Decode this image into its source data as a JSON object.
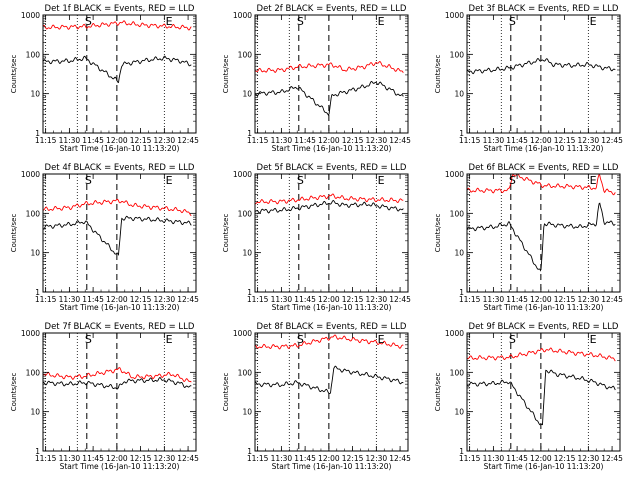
{
  "figure": {
    "x_tick_labels": [
      "11:15",
      "11:30",
      "11:45",
      "12:00",
      "12:15",
      "12:30",
      "12:45"
    ],
    "x_label": "Start Time (16-Jan-10 11:13:20)",
    "y_label": "Counts/sec",
    "y_tick_labels": [
      "1",
      "10",
      "100",
      "1000"
    ],
    "marker_labels": {
      "start": "S",
      "end": "E"
    },
    "colors": {
      "events": "#000000",
      "lld": "#ff0000",
      "axes": "#000000"
    }
  },
  "chart_data": [
    {
      "type": "line",
      "title": "Det 1f BLACK = Events, RED = LLD",
      "x_range": [
        "11:13:20",
        "12:50:00"
      ],
      "y_scale": "log",
      "ylim": [
        1,
        1000
      ],
      "dotted_lines": [
        "11:15",
        "11:35",
        "12:30"
      ],
      "dashed_lines": [
        "11:41",
        "12:00"
      ],
      "markers": [
        {
          "label": "S",
          "time": "11:42"
        },
        {
          "label": "E",
          "time": "12:33"
        }
      ],
      "series": [
        {
          "name": "BLACK = Events",
          "color": "#000000",
          "anchors": [
            [
              "11:13:20",
              65
            ],
            [
              "11:30",
              68
            ],
            [
              "11:40",
              80
            ],
            [
              "12:01",
              20
            ],
            [
              "12:03",
              55
            ],
            [
              "12:10",
              62
            ],
            [
              "12:20",
              72
            ],
            [
              "12:30",
              80
            ],
            [
              "12:40",
              68
            ],
            [
              "12:47",
              55
            ]
          ]
        },
        {
          "name": "RED = LLD",
          "color": "#ff0000",
          "anchors": [
            [
              "11:13:20",
              480
            ],
            [
              "11:41",
              510
            ],
            [
              "12:03",
              640
            ],
            [
              "12:15",
              560
            ],
            [
              "12:30",
              520
            ],
            [
              "12:47",
              470
            ]
          ]
        }
      ]
    },
    {
      "type": "line",
      "title": "Det 2f BLACK = Events, RED = LLD",
      "x_range": [
        "11:13:20",
        "12:50:00"
      ],
      "y_scale": "log",
      "ylim": [
        1,
        1000
      ],
      "dotted_lines": [
        "11:15",
        "11:35",
        "12:30"
      ],
      "dashed_lines": [
        "11:41",
        "12:00"
      ],
      "markers": [
        {
          "label": "S",
          "time": "11:42"
        },
        {
          "label": "E",
          "time": "12:33"
        }
      ],
      "series": [
        {
          "name": "BLACK = Events",
          "color": "#000000",
          "anchors": [
            [
              "11:13:20",
              10
            ],
            [
              "11:30",
              11
            ],
            [
              "11:40",
              15
            ],
            [
              "12:00",
              3
            ],
            [
              "12:02",
              9
            ],
            [
              "12:10",
              11
            ],
            [
              "12:22",
              15
            ],
            [
              "12:30",
              20
            ],
            [
              "12:40",
              12
            ],
            [
              "12:47",
              8
            ]
          ]
        },
        {
          "name": "RED = LLD",
          "color": "#ff0000",
          "anchors": [
            [
              "11:13:20",
              38
            ],
            [
              "11:30",
              40
            ],
            [
              "11:40",
              48
            ],
            [
              "12:02",
              55
            ],
            [
              "12:10",
              40
            ],
            [
              "12:22",
              48
            ],
            [
              "12:30",
              62
            ],
            [
              "12:40",
              45
            ],
            [
              "12:47",
              35
            ]
          ]
        }
      ]
    },
    {
      "type": "line",
      "title": "Det 3f BLACK = Events, RED = LLD",
      "x_range": [
        "11:13:20",
        "12:50:00"
      ],
      "y_scale": "log",
      "ylim": [
        1,
        1000
      ],
      "dotted_lines": [
        "11:15",
        "11:35",
        "12:30"
      ],
      "dashed_lines": [
        "11:41",
        "12:00"
      ],
      "markers": [
        {
          "label": "S",
          "time": "11:42"
        },
        {
          "label": "E",
          "time": "12:33"
        }
      ],
      "series": [
        {
          "name": "BLACK = Events",
          "color": "#000000",
          "anchors": [
            [
              "11:13:20",
              36
            ],
            [
              "11:30",
              40
            ],
            [
              "11:40",
              45
            ],
            [
              "12:02",
              75
            ],
            [
              "12:08",
              55
            ],
            [
              "12:20",
              52
            ],
            [
              "12:30",
              55
            ],
            [
              "12:40",
              45
            ],
            [
              "12:47",
              42
            ]
          ]
        }
      ]
    },
    {
      "type": "line",
      "title": "Det 4f BLACK = Events, RED = LLD",
      "x_range": [
        "11:13:20",
        "12:50:00"
      ],
      "y_scale": "log",
      "ylim": [
        1,
        1000
      ],
      "dotted_lines": [
        "11:15",
        "11:35",
        "12:30"
      ],
      "dashed_lines": [
        "11:41",
        "12:00"
      ],
      "markers": [
        {
          "label": "S",
          "time": "11:42"
        },
        {
          "label": "E",
          "time": "12:33"
        }
      ],
      "series": [
        {
          "name": "BLACK = Events",
          "color": "#000000",
          "anchors": [
            [
              "11:13:20",
              45
            ],
            [
              "11:30",
              52
            ],
            [
              "11:40",
              62
            ],
            [
              "12:01",
              8
            ],
            [
              "12:03",
              75
            ],
            [
              "12:10",
              75
            ],
            [
              "12:25",
              68
            ],
            [
              "12:40",
              60
            ],
            [
              "12:47",
              55
            ]
          ]
        },
        {
          "name": "RED = LLD",
          "color": "#ff0000",
          "anchors": [
            [
              "11:13:20",
              125
            ],
            [
              "11:30",
              140
            ],
            [
              "11:40",
              175
            ],
            [
              "12:02",
              210
            ],
            [
              "12:10",
              160
            ],
            [
              "12:25",
              140
            ],
            [
              "12:40",
              120
            ],
            [
              "12:47",
              100
            ]
          ]
        }
      ]
    },
    {
      "type": "line",
      "title": "Det 5f BLACK = Events, RED = LLD",
      "x_range": [
        "11:13:20",
        "12:50:00"
      ],
      "y_scale": "log",
      "ylim": [
        1,
        1000
      ],
      "dotted_lines": [
        "11:15",
        "11:35",
        "12:30"
      ],
      "dashed_lines": [
        "11:41",
        "12:00"
      ],
      "markers": [
        {
          "label": "S",
          "time": "11:42"
        },
        {
          "label": "E",
          "time": "12:33"
        }
      ],
      "series": [
        {
          "name": "BLACK = Events",
          "color": "#000000",
          "anchors": [
            [
              "11:13:20",
              115
            ],
            [
              "11:30",
              120
            ],
            [
              "11:40",
              135
            ],
            [
              "12:02",
              190
            ],
            [
              "12:10",
              160
            ],
            [
              "12:25",
              170
            ],
            [
              "12:40",
              135
            ],
            [
              "12:47",
              125
            ]
          ]
        },
        {
          "name": "RED = LLD",
          "color": "#ff0000",
          "anchors": [
            [
              "11:13:20",
              195
            ],
            [
              "11:30",
              200
            ],
            [
              "11:40",
              220
            ],
            [
              "12:02",
              280
            ],
            [
              "12:10",
              240
            ],
            [
              "12:25",
              225
            ],
            [
              "12:40",
              215
            ],
            [
              "12:47",
              210
            ]
          ]
        }
      ]
    },
    {
      "type": "line",
      "title": "Det 6f BLACK = Events, RED = LLD",
      "x_range": [
        "11:13:20",
        "12:50:00"
      ],
      "y_scale": "log",
      "ylim": [
        1,
        1000
      ],
      "dotted_lines": [
        "11:15",
        "11:35",
        "12:30"
      ],
      "dashed_lines": [
        "11:41",
        "12:00"
      ],
      "markers": [
        {
          "label": "S",
          "time": "11:42"
        },
        {
          "label": "E",
          "time": "12:33"
        }
      ],
      "series": [
        {
          "name": "BLACK = Events",
          "color": "#000000",
          "anchors": [
            [
              "11:13:20",
              40
            ],
            [
              "11:30",
              45
            ],
            [
              "11:40",
              55
            ],
            [
              "12:00",
              3
            ],
            [
              "12:02",
              55
            ],
            [
              "12:10",
              50
            ],
            [
              "12:25",
              45
            ],
            [
              "12:35",
              55
            ],
            [
              "12:37",
              190
            ],
            [
              "12:40",
              60
            ],
            [
              "12:47",
              55
            ]
          ]
        },
        {
          "name": "RED = LLD",
          "color": "#ff0000",
          "anchors": [
            [
              "11:13:20",
              380
            ],
            [
              "11:40",
              380
            ],
            [
              "11:42",
              1000
            ],
            [
              "12:02",
              500
            ],
            [
              "12:20",
              480
            ],
            [
              "12:35",
              440
            ],
            [
              "12:37",
              1000
            ],
            [
              "12:40",
              380
            ],
            [
              "12:47",
              330
            ]
          ]
        }
      ]
    },
    {
      "type": "line",
      "title": "Det 7f BLACK = Events, RED = LLD",
      "x_range": [
        "11:13:20",
        "12:50:00"
      ],
      "y_scale": "log",
      "ylim": [
        1,
        1000
      ],
      "dotted_lines": [
        "11:15",
        "11:35",
        "12:30"
      ],
      "dashed_lines": [
        "11:41",
        "12:00"
      ],
      "markers": [
        {
          "label": "S",
          "time": "11:42"
        },
        {
          "label": "E",
          "time": "12:33"
        }
      ],
      "series": [
        {
          "name": "BLACK = Events",
          "color": "#000000",
          "anchors": [
            [
              "11:13:20",
              55
            ],
            [
              "11:30",
              50
            ],
            [
              "11:40",
              55
            ],
            [
              "12:01",
              40
            ],
            [
              "12:05",
              60
            ],
            [
              "12:15",
              62
            ],
            [
              "12:30",
              65
            ],
            [
              "12:40",
              52
            ],
            [
              "12:47",
              40
            ]
          ]
        },
        {
          "name": "RED = LLD",
          "color": "#ff0000",
          "anchors": [
            [
              "11:13:20",
              90
            ],
            [
              "11:30",
              75
            ],
            [
              "11:40",
              80
            ],
            [
              "12:02",
              120
            ],
            [
              "12:10",
              75
            ],
            [
              "12:25",
              80
            ],
            [
              "12:35",
              90
            ],
            [
              "12:47",
              55
            ]
          ]
        }
      ]
    },
    {
      "type": "line",
      "title": "Det 8f BLACK = Events, RED = LLD",
      "x_range": [
        "11:13:20",
        "12:50:00"
      ],
      "y_scale": "log",
      "ylim": [
        1,
        1000
      ],
      "dotted_lines": [
        "11:15",
        "11:35",
        "12:30"
      ],
      "dashed_lines": [
        "11:41",
        "12:00"
      ],
      "markers": [
        {
          "label": "S",
          "time": "11:42"
        },
        {
          "label": "E",
          "time": "12:33"
        }
      ],
      "series": [
        {
          "name": "BLACK = Events",
          "color": "#000000",
          "anchors": [
            [
              "11:13:20",
              50
            ],
            [
              "11:30",
              48
            ],
            [
              "11:40",
              55
            ],
            [
              "12:01",
              30
            ],
            [
              "12:03",
              130
            ],
            [
              "12:10",
              110
            ],
            [
              "12:25",
              85
            ],
            [
              "12:40",
              65
            ],
            [
              "12:47",
              55
            ]
          ]
        },
        {
          "name": "RED = LLD",
          "color": "#ff0000",
          "anchors": [
            [
              "11:13:20",
              450
            ],
            [
              "11:30",
              450
            ],
            [
              "11:40",
              480
            ],
            [
              "12:03",
              800
            ],
            [
              "12:15",
              680
            ],
            [
              "12:30",
              580
            ],
            [
              "12:47",
              450
            ]
          ]
        }
      ]
    },
    {
      "type": "line",
      "title": "Det 9f BLACK = Events, RED = LLD",
      "x_range": [
        "11:13:20",
        "12:50:00"
      ],
      "y_scale": "log",
      "ylim": [
        1,
        1000
      ],
      "dotted_lines": [
        "11:15",
        "11:35",
        "12:30"
      ],
      "dashed_lines": [
        "11:41",
        "12:00"
      ],
      "markers": [
        {
          "label": "S",
          "time": "11:42"
        },
        {
          "label": "E",
          "time": "12:33"
        }
      ],
      "series": [
        {
          "name": "BLACK = Events",
          "color": "#000000",
          "anchors": [
            [
              "11:13:20",
              50
            ],
            [
              "11:30",
              52
            ],
            [
              "11:40",
              58
            ],
            [
              "12:01",
              4
            ],
            [
              "12:03",
              115
            ],
            [
              "12:10",
              90
            ],
            [
              "12:25",
              70
            ],
            [
              "12:35",
              55
            ],
            [
              "12:40",
              45
            ],
            [
              "12:47",
              38
            ]
          ]
        },
        {
          "name": "RED = LLD",
          "color": "#ff0000",
          "anchors": [
            [
              "11:13:20",
              230
            ],
            [
              "11:40",
              240
            ],
            [
              "12:03",
              380
            ],
            [
              "12:10",
              350
            ],
            [
              "12:25",
              300
            ],
            [
              "12:35",
              270
            ],
            [
              "12:47",
              220
            ]
          ]
        }
      ]
    }
  ]
}
